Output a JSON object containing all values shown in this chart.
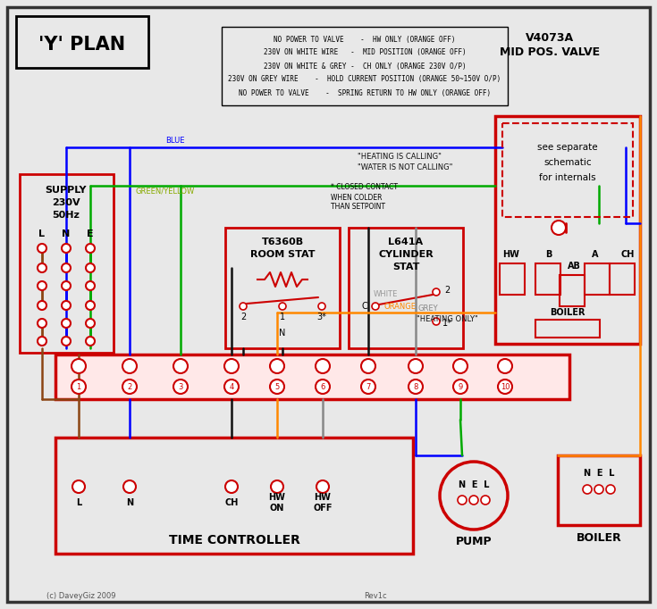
{
  "bg_color": "#e8e8e8",
  "RED": "#cc0000",
  "BLUE": "#0000ff",
  "GREEN": "#00aa00",
  "ORANGE": "#ff8800",
  "BROWN": "#8B4513",
  "GREY": "#888888",
  "BLACK": "#111111",
  "GYELLOW": "#88aa00",
  "legend_lines": [
    "NO POWER TO VALVE    -  HW ONLY (ORANGE OFF)",
    "230V ON WHITE WIRE   -  MID POSITION (ORANGE OFF)",
    "230V ON WHITE & GREY -  CH ONLY (ORANGE 230V O/P)",
    "230V ON GREY WIRE    -  HOLD CURRENT POSITION (ORANGE 50~150V O/P)",
    "NO POWER TO VALVE    -  SPRING RETURN TO HW ONLY (ORANGE OFF)"
  ]
}
